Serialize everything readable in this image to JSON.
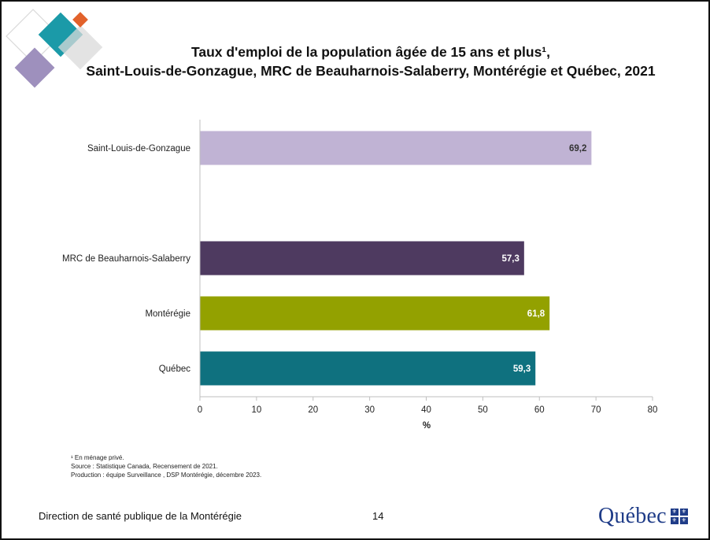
{
  "title": {
    "line1": "Taux d'emploi de la population âgée de 15 ans et plus¹,",
    "line2": "Saint-Louis-de-Gonzague, MRC de Beauharnois-Salaberry, Montérégie et Québec, 2021"
  },
  "chart_data": {
    "type": "bar",
    "orientation": "horizontal",
    "categories": [
      "Saint-Louis-de-Gonzague",
      "MRC de Beauharnois-Salaberry",
      "Montérégie",
      "Québec"
    ],
    "values": [
      69.2,
      57.3,
      61.8,
      59.3
    ],
    "value_labels": [
      "69,2",
      "57,3",
      "61,8",
      "59,3"
    ],
    "colors": [
      "#c0b3d4",
      "#4e3a60",
      "#93a100",
      "#0f717f"
    ],
    "label_colors": [
      "#333333",
      "#ffffff",
      "#ffffff",
      "#ffffff"
    ],
    "xlabel": "%",
    "xlim": [
      0,
      80
    ],
    "xticks": [
      0,
      10,
      20,
      30,
      40,
      50,
      60,
      70,
      80
    ],
    "grid": false,
    "legend": "none"
  },
  "footnotes": [
    "¹ En ménage privé.",
    "Source : Statistique Canada, Recensement de 2021.",
    "Production : équipe Surveillance , DSP Montérégie, décembre 2023."
  ],
  "footer": {
    "organization": "Direction de santé publique de la Montérégie",
    "page_number": "14",
    "logo_text": "Québec"
  },
  "icons": {
    "decoration": "diamond-squares-decoration",
    "logo_flag": "fleur-de-lis-flag-icon"
  },
  "colors": {
    "logo_blue": "#1f3c88",
    "deco_teal": "#1b9aa8",
    "deco_orange": "#e2622b",
    "deco_purple": "#9e90bd"
  }
}
